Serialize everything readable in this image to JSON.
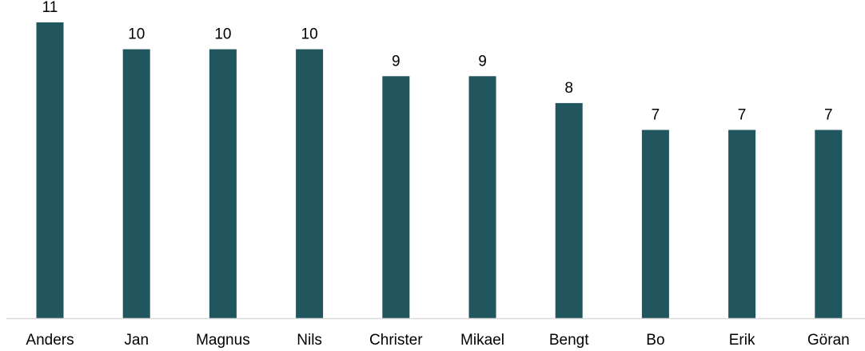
{
  "chart_data": {
    "type": "bar",
    "categories": [
      "Anders",
      "Jan",
      "Magnus",
      "Nils",
      "Christer",
      "Mikael",
      "Bengt",
      "Bo",
      "Erik",
      "Göran"
    ],
    "values": [
      11,
      10,
      10,
      10,
      9,
      9,
      8,
      7,
      7,
      7
    ],
    "title": "",
    "xlabel": "",
    "ylabel": "",
    "ylim": [
      0,
      11
    ],
    "bar_color": "#22565f",
    "axis_color": "#d9d9d9",
    "grid": false,
    "legend": "none",
    "data_labels": true
  }
}
